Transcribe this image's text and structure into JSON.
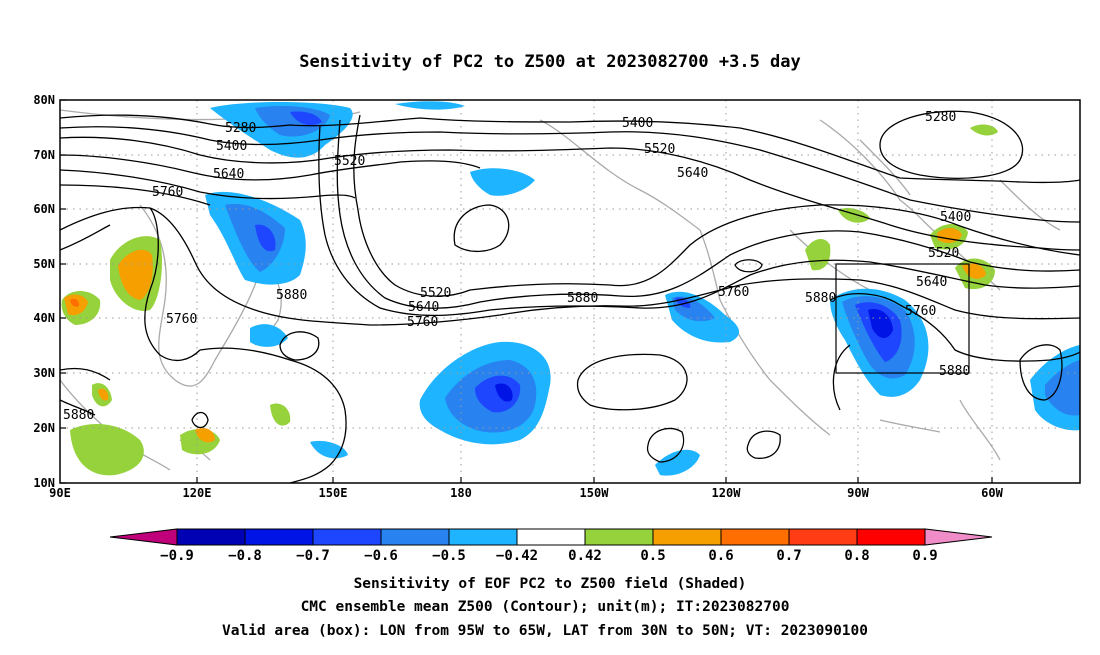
{
  "title": "Sensitivity of PC2 to Z500 at 2023082700 +3.5 day",
  "map": {
    "lat_labels": [
      "80N",
      "70N",
      "60N",
      "50N",
      "40N",
      "30N",
      "20N",
      "10N"
    ],
    "lon_labels": [
      "90E",
      "120E",
      "150E",
      "180",
      "150W",
      "120W",
      "90W",
      "60W"
    ],
    "box": {
      "lon_from": "95W",
      "lon_to": "65W",
      "lat_from": "30N",
      "lat_to": "50N"
    }
  },
  "contour_labels": {
    "c5280_a": "5280",
    "c5400_a": "5400",
    "c5520_a": "5520",
    "c5640_a": "5640",
    "c5760_a": "5760",
    "c5400_b": "5400",
    "c5520_b": "5520",
    "c5640_b": "5640",
    "c5280_b": "5280",
    "c5880_a": "5880",
    "c5520_c": "5520",
    "c5640_c": "5640",
    "c5760_b": "5760",
    "c5880_b": "5880",
    "c5760_c": "5760",
    "c5880_c": "5880",
    "c5400_c": "5400",
    "c5520_d": "5520",
    "c5640_d": "5640",
    "c5760_d": "5760",
    "c5880_d": "5880",
    "c5760_e": "5760",
    "c5880_e": "5880"
  },
  "colorbar": {
    "colors": [
      "#c0007a",
      "#0000b4",
      "#0014e6",
      "#1e46ff",
      "#2882f0",
      "#1eb4ff",
      "#ffffff",
      "#96d23c",
      "#f5a000",
      "#ff6e00",
      "#ff3c14",
      "#ff0000",
      "#f08cc8"
    ],
    "labels": [
      "-0.9",
      "-0.8",
      "-0.7",
      "-0.6",
      "-0.5",
      "-0.42",
      "0.42",
      "0.5",
      "0.6",
      "0.7",
      "0.8",
      "0.9"
    ]
  },
  "caption": {
    "line1": "Sensitivity of EOF PC2 to Z500 field (Shaded)",
    "line2": "CMC ensemble mean Z500 (Contour); unit(m); IT:2023082700",
    "line3": "Valid area (box): LON from 95W to 65W, LAT from 30N to 50N; VT: 2023090100"
  }
}
